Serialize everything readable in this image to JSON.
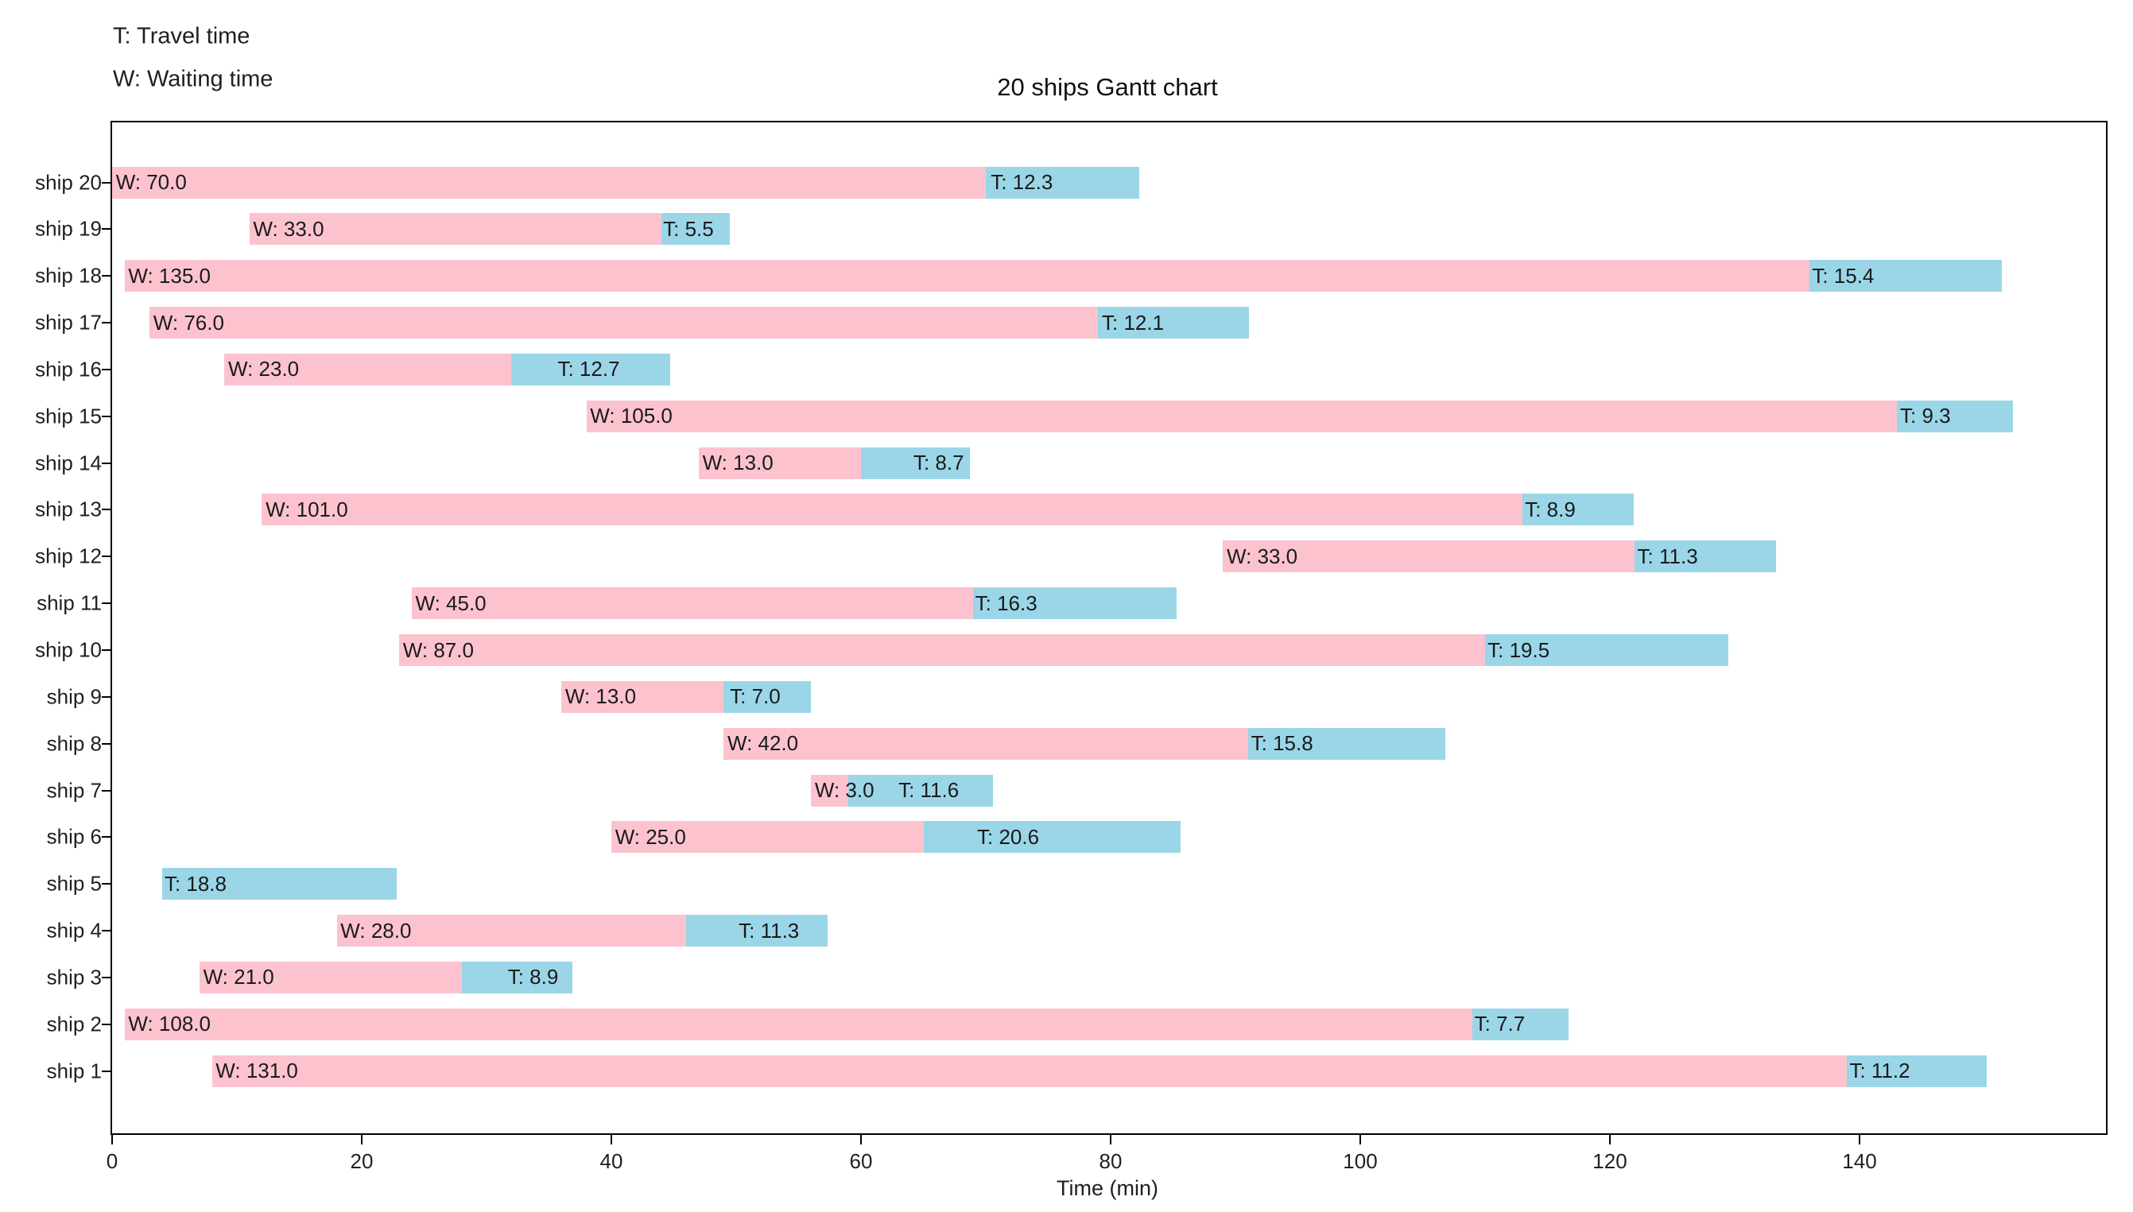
{
  "chart_data": {
    "type": "bar",
    "variant": "horizontal-gantt",
    "title": "20 ships Gantt chart",
    "xlabel": "Time (min)",
    "xlim": [
      0,
      159.8
    ],
    "xticks": [
      0,
      20,
      40,
      60,
      80,
      100,
      120,
      140
    ],
    "grid": false,
    "legend_notes": {
      "travel": "T: Travel time",
      "waiting": "W: Waiting time"
    },
    "colors": {
      "waiting_bar": "#FCC3CF",
      "travel_bar": "#9AD6E7",
      "axis": "#000000",
      "text": "#1a1a1a"
    },
    "ships": [
      {
        "name": "ship 20",
        "start": 0,
        "waiting": 70.0,
        "travel": 12.3,
        "w_label": "W: 70.0",
        "t_label": "T: 12.3",
        "t_label_offset": 0.4
      },
      {
        "name": "ship 19",
        "start": 11,
        "waiting": 33.0,
        "travel": 5.5,
        "w_label": "W: 33.0",
        "t_label": "T: 5.5",
        "t_label_offset": 0.15
      },
      {
        "name": "ship 18",
        "start": 1,
        "waiting": 135.0,
        "travel": 15.4,
        "w_label": "W: 135.0",
        "t_label": "T: 15.4",
        "t_label_offset": 0.2
      },
      {
        "name": "ship 17",
        "start": 3,
        "waiting": 76.0,
        "travel": 12.1,
        "w_label": "W: 76.0",
        "t_label": "T: 12.1",
        "t_label_offset": 0.3
      },
      {
        "name": "ship 16",
        "start": 9,
        "waiting": 23.0,
        "travel": 12.7,
        "w_label": "W: 23.0",
        "t_label": "T: 12.7",
        "t_label_offset": 3.7
      },
      {
        "name": "ship 15",
        "start": 38,
        "waiting": 105.0,
        "travel": 9.3,
        "w_label": "W: 105.0",
        "t_label": "T: 9.3",
        "t_label_offset": 0.25
      },
      {
        "name": "ship 14",
        "start": 47,
        "waiting": 13.0,
        "travel": 8.7,
        "w_label": "W: 13.0",
        "t_label": "T: 8.7",
        "t_label_offset": 4.2
      },
      {
        "name": "ship 13",
        "start": 12,
        "waiting": 101.0,
        "travel": 8.9,
        "w_label": "W: 101.0",
        "t_label": "T: 8.9",
        "t_label_offset": 0.2
      },
      {
        "name": "ship 12",
        "start": 89,
        "waiting": 33.0,
        "travel": 11.3,
        "w_label": "W: 33.0",
        "t_label": "T: 11.3",
        "t_label_offset": 0.2
      },
      {
        "name": "ship 11",
        "start": 24,
        "waiting": 45.0,
        "travel": 16.3,
        "w_label": "W: 45.0",
        "t_label": "T: 16.3",
        "t_label_offset": 0.15
      },
      {
        "name": "ship 10",
        "start": 23,
        "waiting": 87.0,
        "travel": 19.5,
        "w_label": "W: 87.0",
        "t_label": "T: 19.5",
        "t_label_offset": 0.2
      },
      {
        "name": "ship 9",
        "start": 36,
        "waiting": 13.0,
        "travel": 7.0,
        "w_label": "W: 13.0",
        "t_label": "T: 7.0",
        "t_label_offset": 0.5
      },
      {
        "name": "ship 8",
        "start": 49,
        "waiting": 42.0,
        "travel": 15.8,
        "w_label": "W: 42.0",
        "t_label": "T: 15.8",
        "t_label_offset": 0.25
      },
      {
        "name": "ship 7",
        "start": 56,
        "waiting": 3.0,
        "travel": 11.6,
        "w_label": "W: 3.0",
        "t_label": "T: 11.6",
        "t_label_offset": 4.0
      },
      {
        "name": "ship 6",
        "start": 40,
        "waiting": 25.0,
        "travel": 20.6,
        "w_label": "W: 25.0",
        "t_label": "T: 20.6",
        "t_label_offset": 4.3
      },
      {
        "name": "ship 5",
        "start": 4,
        "waiting": null,
        "travel": 18.8,
        "w_label": null,
        "t_label": "T: 18.8",
        "t_label_offset": 0.2
      },
      {
        "name": "ship 4",
        "start": 18,
        "waiting": 28.0,
        "travel": 11.3,
        "w_label": "W: 28.0",
        "t_label": "T: 11.3",
        "t_label_offset": 4.2
      },
      {
        "name": "ship 3",
        "start": 7,
        "waiting": 21.0,
        "travel": 8.9,
        "w_label": "W: 21.0",
        "t_label": "T: 8.9",
        "t_label_offset": 3.7
      },
      {
        "name": "ship 2",
        "start": 1,
        "waiting": 108.0,
        "travel": 7.7,
        "w_label": "W: 108.0",
        "t_label": "T: 7.7",
        "t_label_offset": 0.15
      },
      {
        "name": "ship 1",
        "start": 8,
        "waiting": 131.0,
        "travel": 11.2,
        "w_label": "W: 131.0",
        "t_label": "T: 11.2",
        "t_label_offset": 0.2
      }
    ]
  }
}
